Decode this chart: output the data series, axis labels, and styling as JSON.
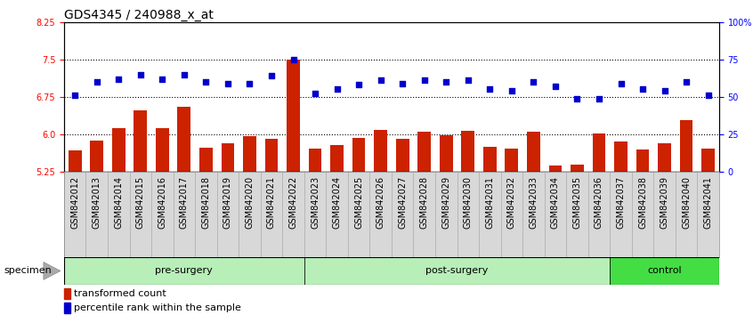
{
  "title": "GDS4345 / 240988_x_at",
  "categories": [
    "GSM842012",
    "GSM842013",
    "GSM842014",
    "GSM842015",
    "GSM842016",
    "GSM842017",
    "GSM842018",
    "GSM842019",
    "GSM842020",
    "GSM842021",
    "GSM842022",
    "GSM842023",
    "GSM842024",
    "GSM842025",
    "GSM842026",
    "GSM842027",
    "GSM842028",
    "GSM842029",
    "GSM842030",
    "GSM842031",
    "GSM842032",
    "GSM842033",
    "GSM842034",
    "GSM842035",
    "GSM842036",
    "GSM842037",
    "GSM842038",
    "GSM842039",
    "GSM842040",
    "GSM842041"
  ],
  "bar_values": [
    5.68,
    5.88,
    6.12,
    6.48,
    6.12,
    6.55,
    5.73,
    5.82,
    5.97,
    5.9,
    7.5,
    5.72,
    5.78,
    5.92,
    6.08,
    5.9,
    6.05,
    5.98,
    6.07,
    5.75,
    5.72,
    6.05,
    5.38,
    5.4,
    6.02,
    5.85,
    5.7,
    5.82,
    6.28,
    5.72
  ],
  "dot_values": [
    51,
    60,
    62,
    65,
    62,
    65,
    60,
    59,
    59,
    64,
    75,
    52,
    55,
    58,
    61,
    59,
    61,
    60,
    61,
    55,
    54,
    60,
    57,
    49,
    49,
    59,
    55,
    54,
    60,
    51
  ],
  "group_ranges": [
    [
      0,
      11
    ],
    [
      11,
      25
    ],
    [
      25,
      30
    ]
  ],
  "group_labels": [
    "pre-surgery",
    "post-surgery",
    "control"
  ],
  "group_colors": [
    "#b8eeb8",
    "#b8eeb8",
    "#44dd44"
  ],
  "ylim_left": [
    5.25,
    8.25
  ],
  "ylim_right": [
    0,
    100
  ],
  "yticks_left": [
    5.25,
    6.0,
    6.75,
    7.5,
    8.25
  ],
  "yticks_right": [
    0,
    25,
    50,
    75,
    100
  ],
  "ytick_right_labels": [
    "0",
    "25",
    "50",
    "75",
    "100%"
  ],
  "hlines": [
    6.0,
    6.75,
    7.5
  ],
  "bar_color": "#cc2200",
  "dot_color": "#0000cc",
  "title_fontsize": 10,
  "tick_fontsize": 7,
  "legend_labels": [
    "transformed count",
    "percentile rank within the sample"
  ],
  "legend_colors": [
    "#cc2200",
    "#0000cc"
  ],
  "specimen_label": "specimen"
}
